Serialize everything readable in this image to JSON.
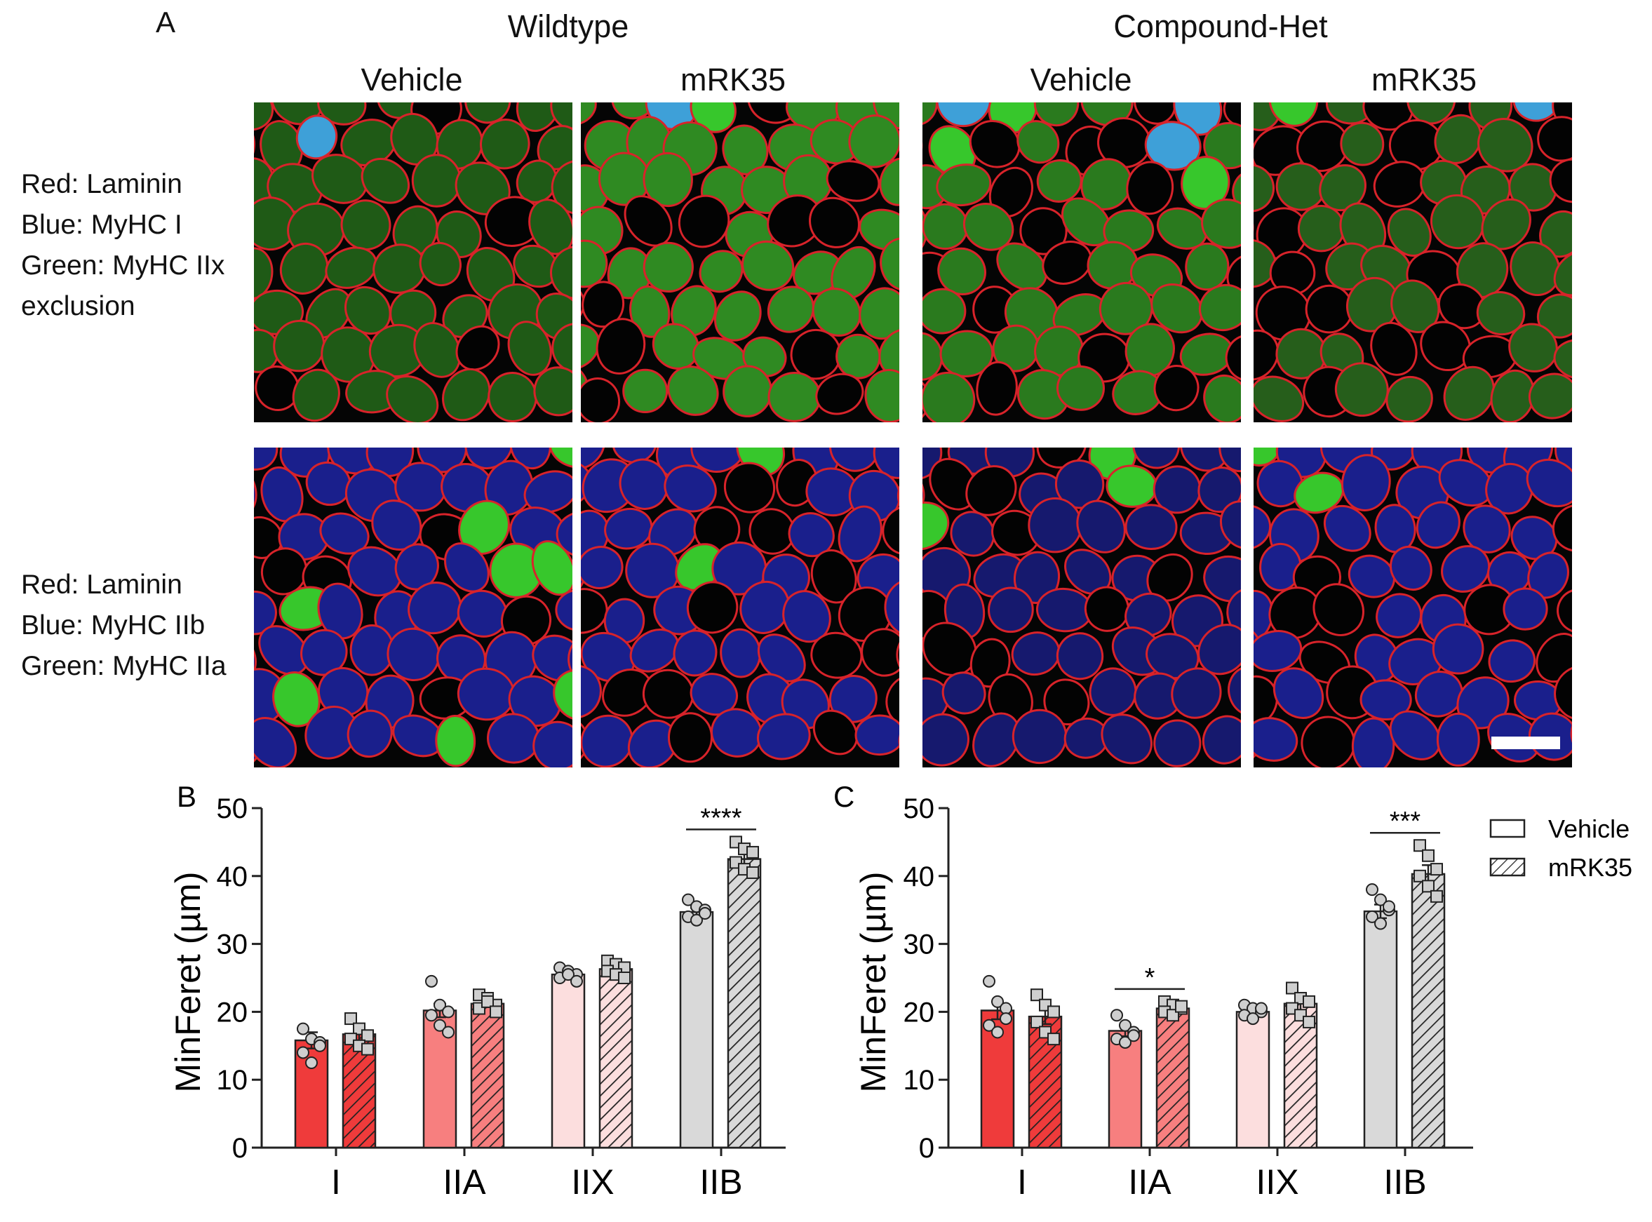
{
  "panel_a": {
    "letter": "A",
    "groups": [
      {
        "title": "Wildtype",
        "columns": [
          "Vehicle",
          "mRK35"
        ]
      },
      {
        "title": "Compound-Het",
        "columns": [
          "Vehicle",
          "mRK35"
        ]
      }
    ],
    "row_labels": [
      {
        "lines": [
          "Red: Laminin",
          "Blue: MyHC I",
          "Green: MyHC IIx",
          "exclusion"
        ]
      },
      {
        "lines": [
          "Red: Laminin",
          "Blue: MyHC IIb",
          "Green: MyHC IIa"
        ]
      }
    ]
  },
  "colors": {
    "laminin": "#d8232a",
    "fiber_green_dark": "#1f5a16",
    "fiber_green_bright": "#37c72c",
    "fiber_blue_dark": "#1a1f8c",
    "fiber_cyan": "#3ea0d8",
    "type_I": "#ef3b3b",
    "type_IIA": "#f77f7f",
    "type_IIX": "#fcdede",
    "type_IIB": "#d9d9d9"
  },
  "legend": {
    "vehicle": "Vehicle",
    "mrk35": "mRK35"
  },
  "chart_data": [
    {
      "type": "bar",
      "panel": "B",
      "xlabel": "",
      "ylabel": "MinFeret (µm)",
      "ylim": [
        0,
        50
      ],
      "yticks": [
        0,
        10,
        20,
        30,
        40,
        50
      ],
      "categories": [
        "I",
        "IIA",
        "IIX",
        "IIB"
      ],
      "series": [
        {
          "name": "Vehicle",
          "pattern": "solid",
          "values": [
            15.8,
            20.2,
            25.5,
            34.7
          ],
          "sem": [
            1.2,
            1.0,
            0.5,
            0.6
          ],
          "points": [
            [
              17.5,
              16.0,
              15.5,
              14.0,
              12.5,
              15.0
            ],
            [
              24.5,
              21.0,
              20.0,
              19.5,
              18.0,
              17.0
            ],
            [
              26.5,
              26.0,
              25.5,
              25.0,
              25.5,
              24.5
            ],
            [
              36.5,
              35.5,
              35.0,
              34.0,
              33.5,
              34.5
            ]
          ]
        },
        {
          "name": "mRK35",
          "pattern": "hatched",
          "values": [
            16.7,
            21.2,
            26.3,
            42.5
          ],
          "sem": [
            0.9,
            0.5,
            0.6,
            0.8
          ],
          "points": [
            [
              19.0,
              17.5,
              16.5,
              16.0,
              15.0,
              14.5
            ],
            [
              22.5,
              22.0,
              21.0,
              20.5,
              21.5,
              20.0
            ],
            [
              27.5,
              27.0,
              26.5,
              26.0,
              25.5,
              25.0
            ],
            [
              45.0,
              44.0,
              43.5,
              42.0,
              41.0,
              40.5
            ]
          ]
        }
      ],
      "significance": [
        {
          "category": "IIB",
          "label": "****"
        }
      ]
    },
    {
      "type": "bar",
      "panel": "C",
      "xlabel": "",
      "ylabel": "MinFeret (µm)",
      "ylim": [
        0,
        50
      ],
      "yticks": [
        0,
        10,
        20,
        30,
        40,
        50
      ],
      "categories": [
        "I",
        "IIA",
        "IIX",
        "IIB"
      ],
      "series": [
        {
          "name": "Vehicle",
          "pattern": "solid",
          "values": [
            20.2,
            17.2,
            20.0,
            34.8
          ],
          "sem": [
            1.3,
            0.8,
            0.6,
            1.0
          ],
          "points": [
            [
              24.5,
              21.5,
              20.5,
              18.0,
              17.0,
              19.0
            ],
            [
              19.5,
              18.0,
              17.0,
              16.0,
              15.5,
              16.5
            ],
            [
              21.0,
              20.5,
              20.0,
              19.5,
              19.0,
              20.5
            ],
            [
              38.0,
              36.5,
              35.0,
              34.0,
              33.0,
              35.5
            ]
          ]
        },
        {
          "name": "mRK35",
          "pattern": "hatched",
          "values": [
            19.3,
            20.5,
            21.2,
            40.3
          ],
          "sem": [
            1.1,
            0.6,
            1.1,
            1.3
          ],
          "points": [
            [
              22.5,
              21.0,
              20.0,
              18.5,
              17.0,
              16.0
            ],
            [
              21.5,
              21.0,
              20.5,
              20.0,
              19.5,
              20.8
            ],
            [
              23.5,
              22.0,
              21.5,
              20.5,
              19.5,
              18.5
            ],
            [
              44.5,
              43.0,
              41.0,
              40.0,
              38.5,
              37.0
            ]
          ]
        }
      ],
      "significance": [
        {
          "category": "IIB",
          "label": "***"
        },
        {
          "category": "IIA",
          "label": "*"
        }
      ]
    }
  ]
}
